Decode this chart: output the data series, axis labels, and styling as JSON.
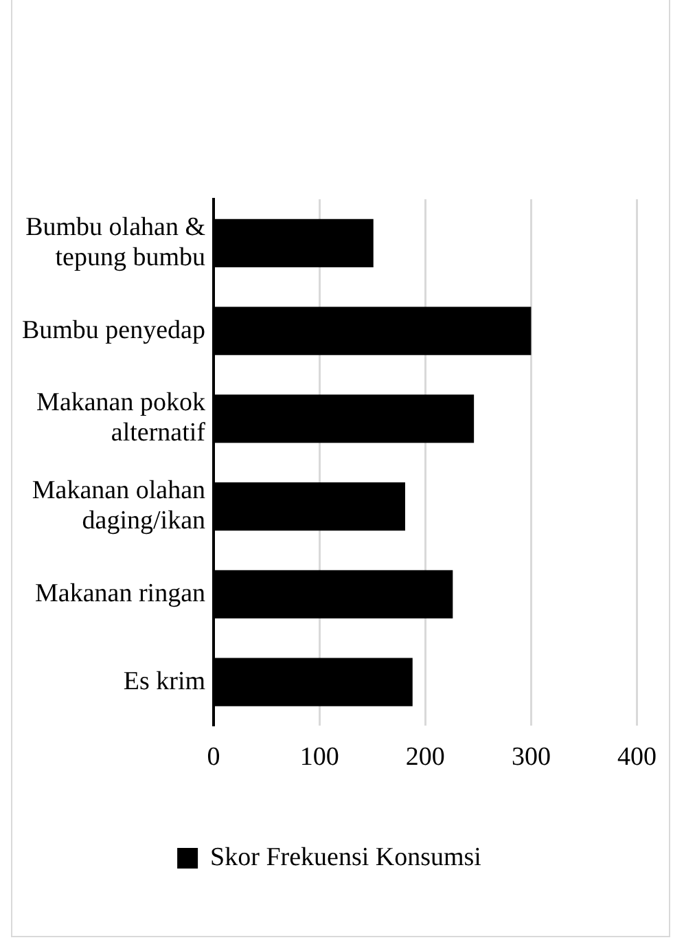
{
  "chart_data": {
    "type": "bar",
    "orientation": "horizontal",
    "categories": [
      "Bumbu olahan & tepung bumbu",
      "Bumbu penyedap",
      "Makanan pokok alternatif",
      "Makanan olahan daging/ikan",
      "Makanan ringan",
      "Es krim"
    ],
    "series": [
      {
        "name": "Skor Frekuensi Konsumsi",
        "color": "#000000",
        "values": [
          151,
          300,
          246,
          181,
          226,
          188
        ]
      }
    ],
    "xlim": [
      0,
      400
    ],
    "xticks": [
      0,
      100,
      200,
      300,
      400
    ],
    "grid": "x",
    "legend": "bottom"
  }
}
